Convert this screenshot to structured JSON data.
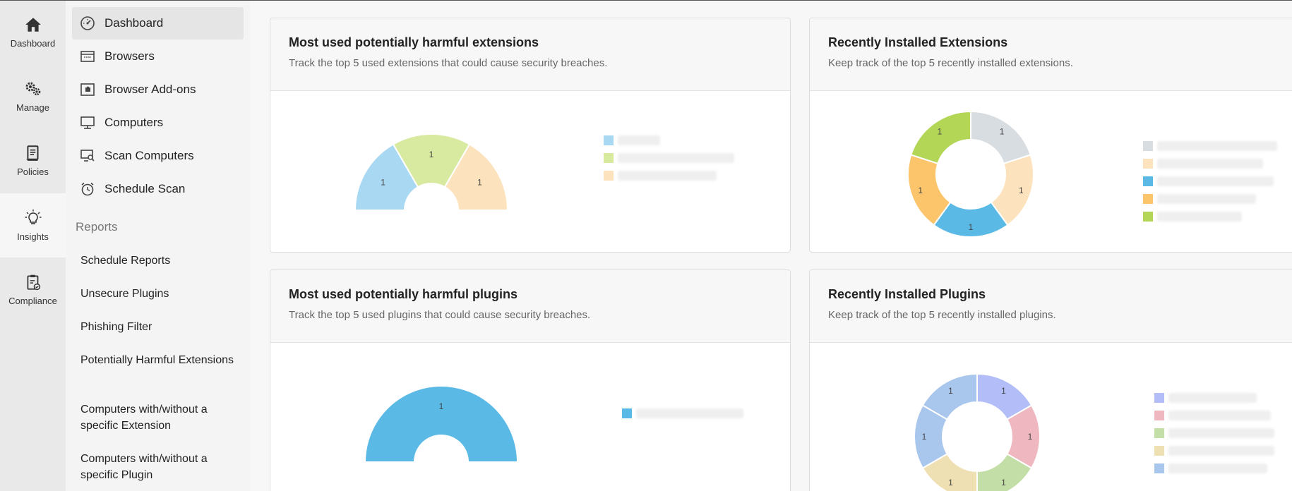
{
  "rail": [
    {
      "label": "Dashboard",
      "icon": "home-icon"
    },
    {
      "label": "Manage",
      "icon": "gears-icon"
    },
    {
      "label": "Policies",
      "icon": "scroll-icon"
    },
    {
      "label": "Insights",
      "icon": "lightbulb-icon"
    },
    {
      "label": "Compliance",
      "icon": "clipboard-check-icon"
    }
  ],
  "menu": {
    "items": [
      {
        "label": "Dashboard",
        "icon": "speedometer-icon"
      },
      {
        "label": "Browsers",
        "icon": "browser-window-icon"
      },
      {
        "label": "Browser Add-ons",
        "icon": "puzzle-icon"
      },
      {
        "label": "Computers",
        "icon": "monitor-icon"
      },
      {
        "label": "Scan Computers",
        "icon": "monitor-search-icon"
      },
      {
        "label": "Schedule Scan",
        "icon": "alarm-clock-icon"
      }
    ],
    "reports_heading": "Reports",
    "reports": [
      "Schedule Reports",
      "Unsecure Plugins",
      "Phishing Filter",
      "Potentially Harmful Extensions",
      "Computers with/without a specific Extension",
      "Computers with/without a specific Plugin"
    ]
  },
  "cards": [
    {
      "title": "Most used potentially harmful extensions",
      "description": "Track the top 5 used extensions that could cause security breaches."
    },
    {
      "title": "Recently Installed Extensions",
      "description": "Keep track of the top 5 recently installed extensions."
    },
    {
      "title": "Most used potentially harmful plugins",
      "description": "Track the top 5 used plugins that could cause security breaches."
    },
    {
      "title": "Recently Installed Plugins",
      "description": "Keep track of the top 5 recently installed plugins."
    }
  ],
  "chart_data": [
    {
      "type": "pie",
      "style": "half-donut",
      "values": [
        1,
        1,
        1
      ],
      "labels": [
        "1",
        "1",
        "1"
      ],
      "colors": [
        "#a9d8f2",
        "#d7eaa0",
        "#fde3bd"
      ]
    },
    {
      "type": "pie",
      "style": "donut",
      "values": [
        1,
        1,
        1,
        1,
        1
      ],
      "labels": [
        "1",
        "1",
        "1",
        "1",
        "1"
      ],
      "colors": [
        "#d8dde2",
        "#fde3bd",
        "#5bb9e6",
        "#fcc46b",
        "#b3d656"
      ]
    },
    {
      "type": "pie",
      "style": "half-donut",
      "values": [
        1
      ],
      "labels": [
        "1"
      ],
      "colors": [
        "#5bb9e6"
      ]
    },
    {
      "type": "pie",
      "style": "donut",
      "values": [
        1,
        1,
        1,
        1,
        1,
        1
      ],
      "labels": [
        "1",
        "1",
        "1",
        "1",
        "1",
        "1"
      ],
      "colors": [
        "#b3bdf7",
        "#efb8c0",
        "#c3dea6",
        "#efe0b3",
        "#a9c6ec",
        "#a9c6ec"
      ]
    }
  ]
}
